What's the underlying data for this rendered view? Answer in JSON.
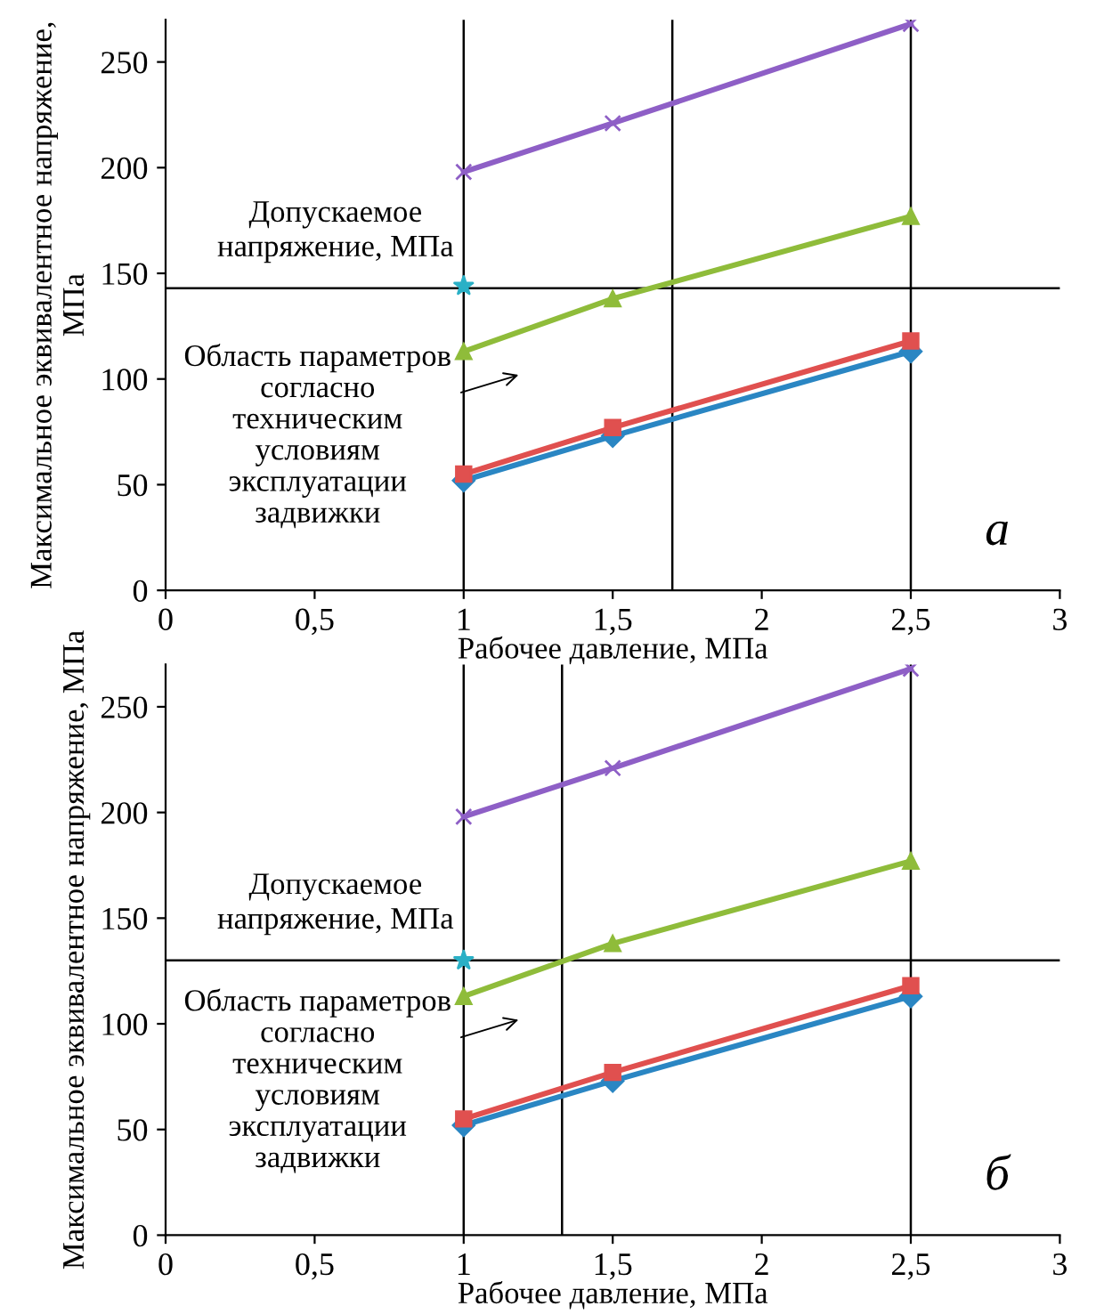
{
  "chart_data": [
    {
      "type": "line",
      "xlabel": "Рабочее давление, МПа",
      "ylabel": "Максимальное эквивалентное напряжение, МПа",
      "x": [
        1,
        1.5,
        2.5
      ],
      "series": [
        {
          "color": "#8e5fc6",
          "values": [
            198,
            221,
            268
          ],
          "marker": "cross"
        },
        {
          "color": "#8fbc3a",
          "values": [
            113,
            138,
            177
          ],
          "marker": "triangle"
        },
        {
          "color": "#e0504f",
          "values": [
            55,
            77,
            118
          ],
          "marker": "square"
        },
        {
          "color": "#2a86c3",
          "values": [
            52,
            73,
            113
          ],
          "marker": "diamond"
        },
        {
          "type": "scatter",
          "color": "#2ab0c6",
          "x": [
            1
          ],
          "values": [
            144
          ],
          "marker": "star"
        }
      ],
      "xlim": [
        0,
        3
      ],
      "ylim": [
        0,
        270
      ],
      "xticks": [
        0,
        {
          "value": 0.5,
          "label": "0,5"
        },
        1,
        {
          "value": 1.5,
          "label": "1,5"
        },
        2,
        {
          "value": 2.5,
          "label": "2,5"
        },
        3
      ],
      "yticks": [
        0,
        50,
        100,
        150,
        200,
        250
      ],
      "ref_lines": [
        {
          "axis": "y",
          "value": 143,
          "label": "Допускаемое\nнапряжение, МПа",
          "color": "#000000"
        },
        {
          "axis": "x",
          "value": 1,
          "color": "#000000"
        },
        {
          "axis": "x",
          "value": 2.5,
          "color": "#000000"
        },
        {
          "axis": "x",
          "value": 1.7,
          "color": "#000000"
        }
      ],
      "annotations": [
        "Область параметров\nсогласно\nтехническим\nусловиям\nэксплуатации\nзадвижки",
        "а"
      ],
      "grid": false,
      "legend": false
    },
    {
      "type": "line",
      "xlabel": "Рабочее давление, МПа",
      "ylabel": "Максимальное эквивалентное напряжение, МПа",
      "x": [
        1,
        1.5,
        2.5
      ],
      "series": [
        {
          "color": "#8e5fc6",
          "values": [
            198,
            221,
            268
          ],
          "marker": "cross"
        },
        {
          "color": "#8fbc3a",
          "values": [
            113,
            138,
            177
          ],
          "marker": "triangle"
        },
        {
          "color": "#e0504f",
          "values": [
            55,
            77,
            118
          ],
          "marker": "square"
        },
        {
          "color": "#2a86c3",
          "values": [
            52,
            73,
            113
          ],
          "marker": "diamond"
        },
        {
          "type": "scatter",
          "color": "#2ab0c6",
          "x": [
            1
          ],
          "values": [
            130
          ],
          "marker": "star"
        }
      ],
      "xlim": [
        0,
        3
      ],
      "ylim": [
        0,
        270
      ],
      "xticks": [
        0,
        {
          "value": 0.5,
          "label": "0,5"
        },
        1,
        {
          "value": 1.5,
          "label": "1,5"
        },
        2,
        {
          "value": 2.5,
          "label": "2,5"
        },
        3
      ],
      "yticks": [
        0,
        50,
        100,
        150,
        200,
        250
      ],
      "ref_lines": [
        {
          "axis": "y",
          "value": 130,
          "label": "Допускаемое\nнапряжение, МПа",
          "color": "#000000"
        },
        {
          "axis": "x",
          "value": 1,
          "color": "#000000"
        },
        {
          "axis": "x",
          "value": 2.5,
          "color": "#000000"
        },
        {
          "axis": "x",
          "value": 1.33,
          "color": "#000000"
        }
      ],
      "annotations": [
        "Область параметров\nсогласно\nтехническим\nусловиям\nэксплуатации\nзадвижки",
        "б"
      ],
      "grid": false,
      "legend": false
    }
  ]
}
